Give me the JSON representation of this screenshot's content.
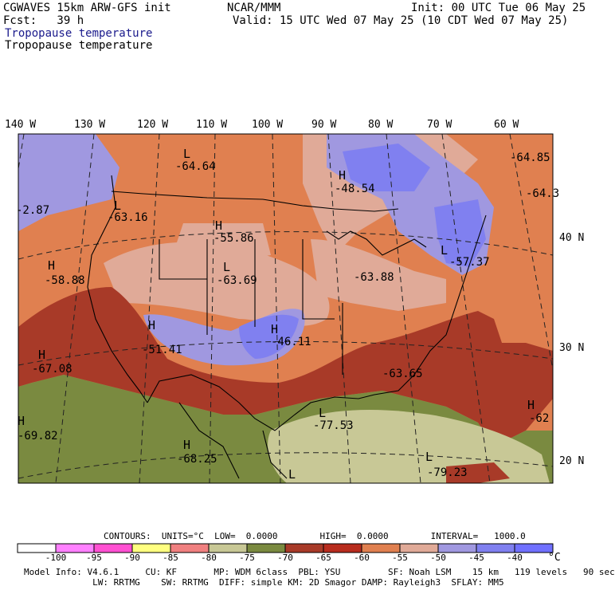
{
  "header": {
    "model_title": "CGWAVES 15km ARW-GFS init",
    "forecast": "Fcst:   39 h",
    "org": "NCAR/MMM",
    "init": "Init: 00 UTC Tue 06 May 25",
    "valid": "Valid: 15 UTC Wed 07 May 25 (10 CDT Wed 07 May 25)"
  },
  "variable": {
    "title_blue": "Tropopause temperature",
    "title_black": "Tropopause temperature",
    "blue_color": "#1a1a8c"
  },
  "axes": {
    "lon_labels": [
      "140 W",
      "130 W",
      "120 W",
      "110 W",
      "100 W",
      "90 W",
      "80 W",
      "70 W",
      "60 W"
    ],
    "lat_labels": [
      "40 N",
      "30 N",
      "20 N"
    ]
  },
  "map_labels": [
    {
      "sym": "L",
      "val": "-64.64"
    },
    {
      "sym": "H",
      "val": "-48.54"
    },
    {
      "sym": "",
      "val": "-64.85"
    },
    {
      "sym": "",
      "val": "-64.3"
    },
    {
      "sym": "",
      "val": "-2.87"
    },
    {
      "sym": "L",
      "val": "-63.16"
    },
    {
      "sym": "H",
      "val": "-55.86"
    },
    {
      "sym": "H",
      "val": "-58.88"
    },
    {
      "sym": "L",
      "val": "-63.69"
    },
    {
      "sym": "",
      "val": "-63.88"
    },
    {
      "sym": "L",
      "val": "-57.37"
    },
    {
      "sym": "H",
      "val": "-51.41"
    },
    {
      "sym": "H",
      "val": "-46.11"
    },
    {
      "sym": "H",
      "val": "-67.08"
    },
    {
      "sym": "",
      "val": "-63.65"
    },
    {
      "sym": "L",
      "val": "-77.53"
    },
    {
      "sym": "H",
      "val": "-62"
    },
    {
      "sym": "H",
      "val": "-69.82"
    },
    {
      "sym": "H",
      "val": "-68.25"
    },
    {
      "sym": "L",
      "val": "-79.23"
    },
    {
      "sym": "L",
      "val": ""
    }
  ],
  "contours": {
    "label": "CONTOURS:  UNITS=°C  LOW=  0.0000        HIGH=  0.0000        INTERVAL=   1000.0"
  },
  "colorbar": {
    "unit": "°C",
    "colors": [
      "#ffffff",
      "#ff80ff",
      "#ff50d2",
      "#ffff80",
      "#f08080",
      "#c8c896",
      "#7a8a40",
      "#a83a28",
      "#b82c1e",
      "#e08050",
      "#e0aa98",
      "#a098e0",
      "#8080f0",
      "#7070ff"
    ],
    "tick_labels": [
      "-100",
      "-95",
      "-90",
      "-85",
      "-80",
      "-75",
      "-70",
      "-65",
      "-60",
      "-55",
      "-50",
      "-45",
      "-40"
    ]
  },
  "footer": {
    "line1": "Model Info: V4.6.1     CU: KF       MP: WDM 6class  PBL: YSU         SF: Noah LSM    15 km   119 levels   90 sec",
    "line2": "             LW: RRTMG    SW: RRTMG  DIFF: simple KM: 2D Smagor DAMP: Rayleigh3  SFLAY: MM5"
  }
}
